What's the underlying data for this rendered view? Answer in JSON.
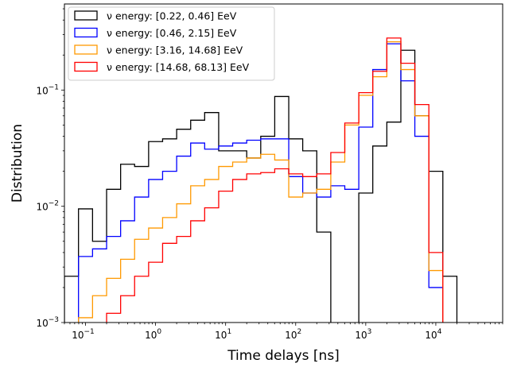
{
  "chart_data": {
    "type": "histogram-step",
    "xlabel": "Time delays [ns]",
    "ylabel": "Distribution",
    "xscale": "log",
    "yscale": "log",
    "xlim": [
      0.05,
      90000
    ],
    "ylim": [
      0.001,
      0.55
    ],
    "grid": false,
    "legend_position": "top-left",
    "x_tick_labels": [
      {
        "base": "10",
        "exp": "−1",
        "value": 0.1
      },
      {
        "base": "10",
        "exp": "0",
        "value": 1
      },
      {
        "base": "10",
        "exp": "1",
        "value": 10
      },
      {
        "base": "10",
        "exp": "2",
        "value": 100
      },
      {
        "base": "10",
        "exp": "3",
        "value": 1000
      },
      {
        "base": "10",
        "exp": "4",
        "value": 10000
      }
    ],
    "y_tick_labels": [
      {
        "base": "10",
        "exp": "−3",
        "value": 0.001
      },
      {
        "base": "10",
        "exp": "−2",
        "value": 0.01
      },
      {
        "base": "10",
        "exp": "−1",
        "value": 0.1
      }
    ],
    "bin_edges": [
      0.05,
      0.0794,
      0.126,
      0.2,
      0.317,
      0.502,
      0.796,
      1.26,
      2.0,
      3.17,
      5.02,
      7.96,
      12.6,
      20.0,
      31.7,
      50.2,
      79.6,
      126,
      200,
      317,
      502,
      796,
      1260,
      2000,
      3170,
      5020,
      7960,
      12600,
      20000,
      31700,
      50200
    ],
    "series": [
      {
        "name": "ν energy: [0.22, 0.46] EeV",
        "color": "#000000",
        "values": [
          0.0025,
          0.0095,
          0.005,
          0.014,
          0.023,
          0.022,
          0.036,
          0.038,
          0.046,
          0.055,
          0.064,
          0.03,
          0.03,
          0.026,
          0.04,
          0.088,
          0.038,
          0.03,
          0.006,
          0.0008,
          0.0008,
          0.013,
          0.033,
          0.053,
          0.22,
          0.06,
          0.02,
          0.0025,
          null,
          null
        ]
      },
      {
        "name": "ν energy: [0.46, 2.15] EeV",
        "color": "#0000ff",
        "values": [
          null,
          0.0037,
          0.0043,
          0.0055,
          0.0075,
          0.012,
          0.017,
          0.02,
          0.027,
          0.035,
          0.031,
          0.033,
          0.035,
          0.037,
          0.038,
          0.038,
          0.018,
          0.013,
          0.012,
          0.015,
          0.014,
          0.048,
          0.15,
          0.25,
          0.12,
          0.04,
          0.002,
          null,
          null,
          null
        ]
      },
      {
        "name": "ν energy: [3.16, 14.68] EeV",
        "color": "#ff9900",
        "values": [
          null,
          0.0011,
          0.0017,
          0.0024,
          0.0035,
          0.0052,
          0.0065,
          0.008,
          0.0105,
          0.015,
          0.017,
          0.022,
          0.024,
          0.026,
          0.028,
          0.025,
          0.012,
          0.013,
          0.014,
          0.024,
          0.05,
          0.09,
          0.13,
          0.26,
          0.15,
          0.06,
          0.0028,
          null,
          null,
          null
        ]
      },
      {
        "name": "ν energy: [14.68, 68.13] EeV",
        "color": "#ff0000",
        "values": [
          null,
          null,
          null,
          0.0012,
          0.0017,
          0.0025,
          0.0033,
          0.0048,
          0.0055,
          0.0075,
          0.0097,
          0.0135,
          0.017,
          0.019,
          0.0195,
          0.021,
          0.019,
          0.018,
          0.019,
          0.029,
          0.052,
          0.095,
          0.145,
          0.28,
          0.17,
          0.075,
          0.004,
          null,
          null,
          null
        ]
      }
    ]
  }
}
